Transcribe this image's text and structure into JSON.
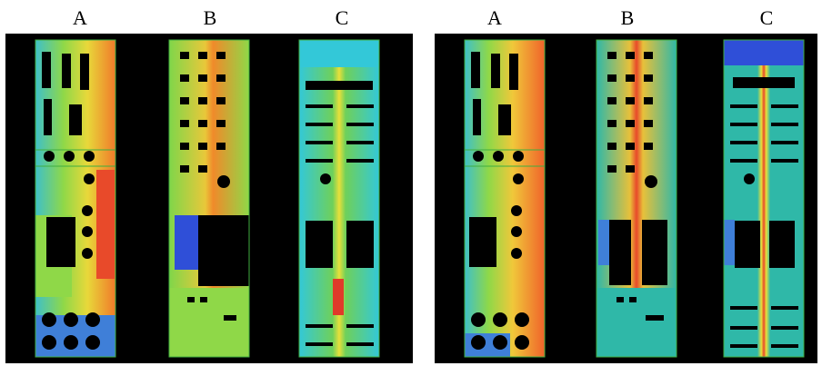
{
  "panels": [
    {
      "id": "left",
      "columns": [
        "A",
        "B",
        "C"
      ]
    },
    {
      "id": "right",
      "columns": [
        "A",
        "B",
        "C"
      ]
    }
  ],
  "colors": {
    "background": "#000000",
    "blue": "#2f4fd8",
    "cyan": "#33c8d8",
    "teal": "#2fb8a8",
    "green": "#7fd64a",
    "yellow": "#e8e03a",
    "orange": "#f08a2a",
    "red": "#e03a2a",
    "outline": "#3fae3f"
  }
}
